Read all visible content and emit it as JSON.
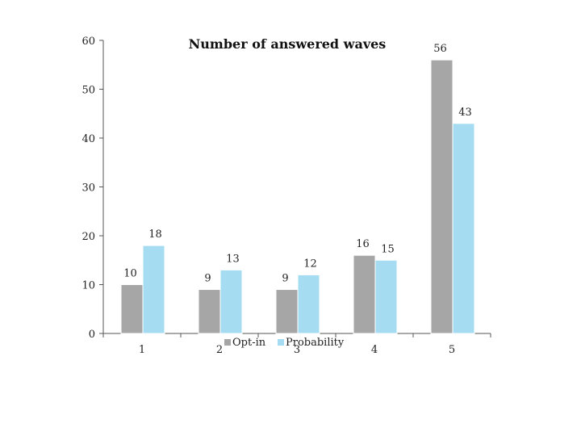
{
  "chart_data": {
    "type": "bar",
    "title": "Number of answered waves",
    "xlabel": "",
    "ylabel": "",
    "categories": [
      "1",
      "2",
      "3",
      "4",
      "5"
    ],
    "series": [
      {
        "name": "Opt-in",
        "values": [
          10,
          9,
          9,
          16,
          56
        ],
        "labels": [
          "10",
          "9",
          "9",
          "16",
          "56"
        ],
        "color": "#a6a6a6"
      },
      {
        "name": "Probability",
        "values": [
          18,
          13,
          12,
          15,
          43
        ],
        "labels": [
          "18",
          "13",
          "12",
          "15",
          "43"
        ],
        "color": "#a6dcf2"
      }
    ],
    "ylim": [
      0,
      60
    ],
    "yticks": [
      "0",
      "10",
      "20",
      "30",
      "40",
      "50",
      "60"
    ],
    "grid": false,
    "legend_position": "bottom"
  }
}
